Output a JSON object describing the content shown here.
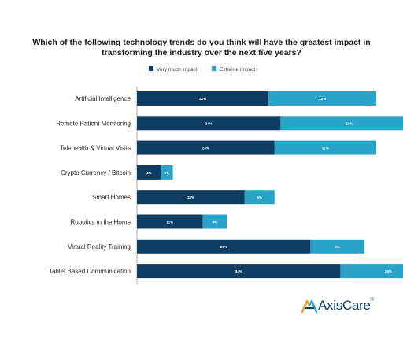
{
  "chart_data": {
    "type": "bar",
    "orientation": "horizontal",
    "stacked": true,
    "title": "Which of the following technology trends do you think will have the greatest impact in transforming the industry over the next five years?",
    "categories": [
      "Artificial Intelligence",
      "Remote Patient Monitoring",
      "Telehealth & Virtual Visits",
      "Crypto Currency / Bitcoin",
      "Smart Homes",
      "Robotics in the Home",
      "Virtual Reality Training",
      "Tablet Based Communication"
    ],
    "series": [
      {
        "name": "Very much impact",
        "color": "#0d3d63",
        "values": [
          22,
          24,
          23,
          4,
          18,
          11,
          29,
          34
        ],
        "labels": [
          "22%",
          "24%",
          "23%",
          "4%",
          "18%",
          "11%",
          "29%",
          "34%"
        ]
      },
      {
        "name": "Extreme impact",
        "color": "#2aa3c9",
        "values": [
          18,
          23,
          17,
          2,
          5,
          4,
          9,
          16
        ],
        "labels": [
          "18%",
          "23%",
          "17%",
          "2%",
          "5%",
          "4%",
          "9%",
          "16%"
        ]
      }
    ],
    "legend_position": "top",
    "grid": false
  },
  "logo": {
    "text": "AxisCare",
    "reg": "®",
    "colors": [
      "#0d3d63",
      "#2aa3c9",
      "#f39c12"
    ]
  }
}
